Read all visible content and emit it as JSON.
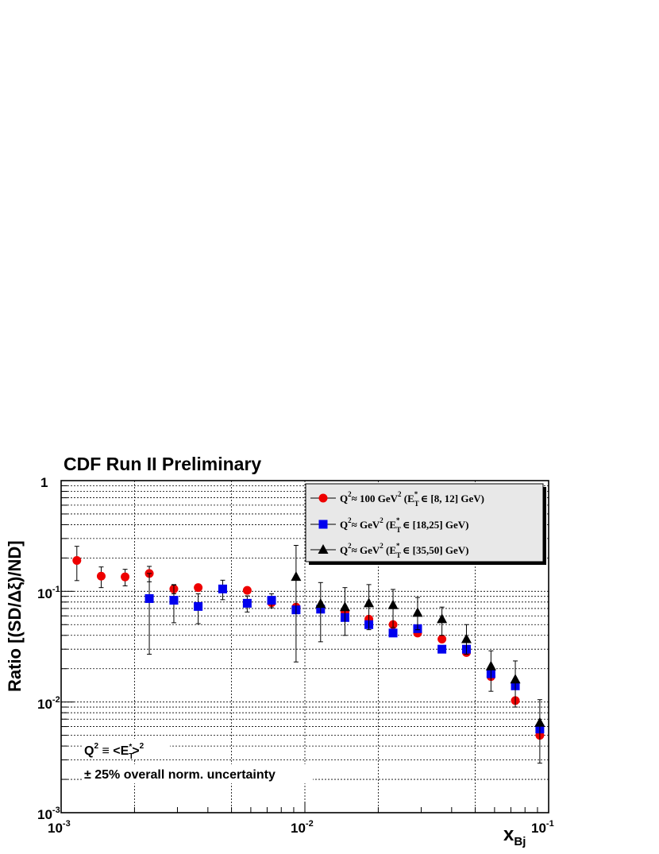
{
  "chart_data": {
    "type": "scatter",
    "title": "CDF Run II Preliminary",
    "xlabel": "x",
    "xlabel_sub": "Bj",
    "ylabel": "Ratio [(SD/Δξ)/ND]",
    "xscale": "log",
    "yscale": "log",
    "xlim": [
      0.001,
      0.1
    ],
    "ylim": [
      0.001,
      1
    ],
    "grid": true,
    "legend_position": "top-right",
    "x_ticks": [
      {
        "base": "10",
        "exp": "-3"
      },
      {
        "base": "10",
        "exp": "-2"
      },
      {
        "base": "10",
        "exp": "-1"
      }
    ],
    "y_ticks": [
      {
        "base": "10",
        "exp": "-3",
        "value": 0.001
      },
      {
        "base": "10",
        "exp": "-2",
        "value": 0.01
      },
      {
        "base": "10",
        "exp": "-1",
        "value": 0.1
      },
      {
        "base": "1",
        "exp": "",
        "value": 1
      }
    ],
    "series": [
      {
        "legend_main": "Q",
        "legend_rest": "≈ 100 GeV",
        "legend_bracket": " (E",
        "legend_range": " ∈ [8, 12] GeV)",
        "marker": "circle",
        "color": "#ee0000",
        "points": [
          {
            "x": 0.00116,
            "y": 0.19,
            "lo": 0.125,
            "hi": 0.255
          },
          {
            "x": 0.00146,
            "y": 0.137,
            "lo": 0.108,
            "hi": 0.166
          },
          {
            "x": 0.00183,
            "y": 0.135,
            "lo": 0.112,
            "hi": 0.158
          },
          {
            "x": 0.0023,
            "y": 0.145,
            "lo": 0.122,
            "hi": 0.168
          },
          {
            "x": 0.0029,
            "y": 0.105,
            "lo": 0.095,
            "hi": 0.115
          },
          {
            "x": 0.00365,
            "y": 0.108
          },
          {
            "x": 0.0058,
            "y": 0.102
          },
          {
            "x": 0.0073,
            "y": 0.079
          },
          {
            "x": 0.0092,
            "y": 0.072
          },
          {
            "x": 0.0116,
            "y": 0.071
          },
          {
            "x": 0.0146,
            "y": 0.065
          },
          {
            "x": 0.0183,
            "y": 0.056
          },
          {
            "x": 0.023,
            "y": 0.05
          },
          {
            "x": 0.029,
            "y": 0.042
          },
          {
            "x": 0.0365,
            "y": 0.037
          },
          {
            "x": 0.046,
            "y": 0.028
          },
          {
            "x": 0.058,
            "y": 0.017
          },
          {
            "x": 0.073,
            "y": 0.0103
          },
          {
            "x": 0.092,
            "y": 0.005
          }
        ]
      },
      {
        "legend_main": "Q",
        "legend_rest": "≈ GeV",
        "legend_bracket": " (E",
        "legend_range": " ∈ [18,25] GeV)",
        "marker": "square",
        "color": "#0000ee",
        "points": [
          {
            "x": 0.0023,
            "y": 0.086,
            "lo": 0.027,
            "hi": 0.145
          },
          {
            "x": 0.0029,
            "y": 0.083,
            "lo": 0.052,
            "hi": 0.114
          },
          {
            "x": 0.00365,
            "y": 0.073,
            "lo": 0.051,
            "hi": 0.095
          },
          {
            "x": 0.0046,
            "y": 0.105,
            "lo": 0.084,
            "hi": 0.126
          },
          {
            "x": 0.0058,
            "y": 0.078,
            "lo": 0.065,
            "hi": 0.091
          },
          {
            "x": 0.0073,
            "y": 0.083,
            "lo": 0.071,
            "hi": 0.095
          },
          {
            "x": 0.0092,
            "y": 0.068
          },
          {
            "x": 0.0116,
            "y": 0.069
          },
          {
            "x": 0.0146,
            "y": 0.058
          },
          {
            "x": 0.0183,
            "y": 0.05
          },
          {
            "x": 0.023,
            "y": 0.042
          },
          {
            "x": 0.029,
            "y": 0.046
          },
          {
            "x": 0.0365,
            "y": 0.03
          },
          {
            "x": 0.046,
            "y": 0.03
          },
          {
            "x": 0.058,
            "y": 0.018
          },
          {
            "x": 0.073,
            "y": 0.014
          },
          {
            "x": 0.092,
            "y": 0.0057
          }
        ]
      },
      {
        "legend_main": "Q",
        "legend_rest": "≈ GeV",
        "legend_bracket": " (E",
        "legend_range": " ∈ [35,50] GeV)",
        "marker": "triangle",
        "color": "#000000",
        "points": [
          {
            "x": 0.0092,
            "y": 0.135,
            "lo": 0.023,
            "hi": 0.26
          },
          {
            "x": 0.0116,
            "y": 0.077,
            "lo": 0.035,
            "hi": 0.12
          },
          {
            "x": 0.0146,
            "y": 0.072,
            "lo": 0.04,
            "hi": 0.108
          },
          {
            "x": 0.0183,
            "y": 0.078,
            "lo": 0.045,
            "hi": 0.115
          },
          {
            "x": 0.023,
            "y": 0.075,
            "lo": 0.047,
            "hi": 0.104
          },
          {
            "x": 0.029,
            "y": 0.064,
            "lo": 0.045,
            "hi": 0.088
          },
          {
            "x": 0.0365,
            "y": 0.056,
            "lo": 0.04,
            "hi": 0.072
          },
          {
            "x": 0.046,
            "y": 0.037,
            "lo": 0.027,
            "hi": 0.05
          },
          {
            "x": 0.058,
            "y": 0.021,
            "lo": 0.0125,
            "hi": 0.029
          },
          {
            "x": 0.073,
            "y": 0.016,
            "lo": 0.009,
            "hi": 0.0235
          },
          {
            "x": 0.092,
            "y": 0.0065,
            "lo": 0.0028,
            "hi": 0.0105
          }
        ]
      }
    ],
    "annotations": {
      "q2_definition": {
        "q": "Q",
        "sq": "2",
        "mid": " ≡ <E",
        "t": "T",
        "star": "*",
        "close": ">",
        "sq2": "2"
      },
      "uncertainty": "± 25% overall norm. uncertainty"
    }
  }
}
